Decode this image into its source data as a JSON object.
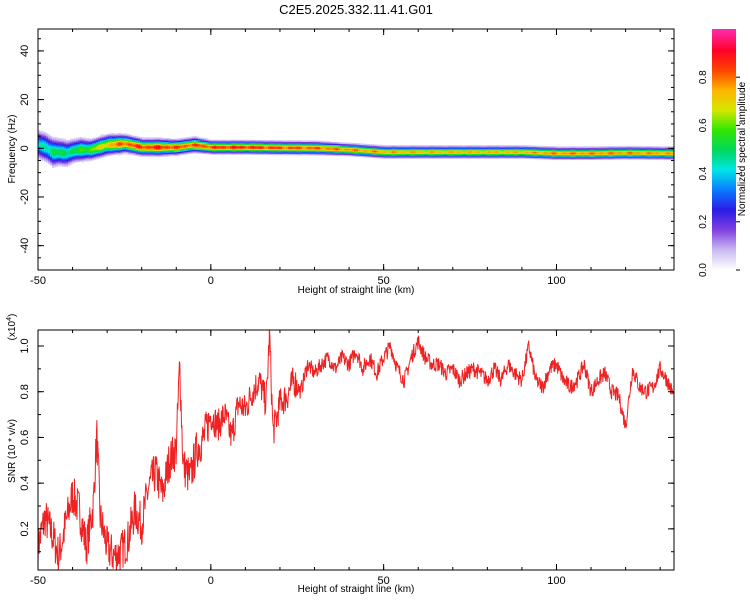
{
  "title": "C2E5.2025.332.11.41.G01",
  "chart_data": [
    {
      "type": "heatmap",
      "title": "C2E5.2025.332.11.41.G01",
      "xlabel": "Height of straight line (km)",
      "ylabel": "Frequency (Hz)",
      "xlim": [
        -50,
        134
      ],
      "ylim": [
        -50,
        49
      ],
      "x_ticks": [
        "-50",
        "0",
        "50",
        "100"
      ],
      "y_ticks": [
        "40",
        "20",
        "0",
        "-20",
        "-40"
      ],
      "colorbar": {
        "label": "Normalized spectral amplitude",
        "range": [
          0,
          1
        ],
        "ticks": [
          "0.0",
          "0.2",
          "0.4",
          "0.6",
          "0.8"
        ],
        "colors": [
          "#ffffff",
          "#c9b8f2",
          "#7f3fe0",
          "#2a1ce6",
          "#0a7cff",
          "#00e6e6",
          "#00d85a",
          "#33e600",
          "#d6e600",
          "#ffb400",
          "#ff4400",
          "#ff0028",
          "#ff2aa8"
        ]
      },
      "ridge": {
        "x": [
          -50,
          -48,
          -46,
          -44,
          -42,
          -40,
          -38,
          -35,
          -30,
          -25,
          -20,
          -15,
          -10,
          -5,
          0,
          5,
          10,
          20,
          30,
          40,
          50,
          60,
          70,
          80,
          90,
          100,
          110,
          120,
          134
        ],
        "center_hz": [
          1.5,
          0.5,
          -1.5,
          -1.5,
          -2,
          -1,
          -0.5,
          -0.5,
          1.5,
          2,
          0.5,
          0.5,
          0.5,
          1.5,
          0.5,
          0.5,
          0.5,
          0.3,
          0.2,
          -0.5,
          -1.5,
          -1.5,
          -1.5,
          -1.5,
          -1.5,
          -2,
          -2,
          -1.8,
          -2
        ],
        "half_width_hz": [
          5,
          5,
          5,
          4.5,
          4.5,
          4,
          4,
          3.5,
          3.5,
          3,
          2.8,
          2.8,
          2.5,
          2.5,
          2.2,
          2.2,
          2.2,
          2.2,
          2.2,
          2,
          2,
          2,
          2,
          2,
          2,
          2,
          2,
          2,
          2
        ],
        "peak": [
          0.45,
          0.5,
          0.55,
          0.55,
          0.55,
          0.55,
          0.6,
          0.65,
          0.8,
          0.9,
          0.92,
          0.95,
          0.9,
          0.9,
          0.92,
          0.95,
          0.95,
          0.9,
          0.88,
          0.85,
          0.82,
          0.8,
          0.8,
          0.8,
          0.8,
          0.85,
          0.85,
          0.85,
          0.82
        ]
      }
    },
    {
      "type": "line",
      "xlabel": "Height of straight line (km)",
      "ylabel": "SNR (10 * v/v)",
      "y_multiplier": "(x10",
      "y_multiplier_exp": "4",
      "y_multiplier_close": ")",
      "xlim": [
        -50,
        134
      ],
      "ylim": [
        0.02,
        1.07
      ],
      "x_ticks": [
        "-50",
        "0",
        "50",
        "100"
      ],
      "y_ticks": [
        "1.0",
        "0.8",
        "0.6",
        "0.4",
        "0.2"
      ],
      "series": [
        {
          "color": "#ee2222",
          "x": [
            -50,
            -48,
            -46,
            -44,
            -42,
            -40,
            -38,
            -36,
            -34,
            -33,
            -32,
            -30,
            -28,
            -26,
            -24,
            -22,
            -20,
            -18,
            -16,
            -14,
            -12,
            -10,
            -9,
            -8,
            -6,
            -4,
            -2,
            0,
            2,
            4,
            6,
            8,
            10,
            12,
            14,
            16,
            17,
            18,
            20,
            22,
            24,
            26,
            28,
            30,
            32,
            34,
            36,
            38,
            40,
            42,
            44,
            46,
            48,
            50,
            52,
            54,
            56,
            58,
            60,
            62,
            64,
            66,
            68,
            70,
            72,
            74,
            76,
            78,
            80,
            82,
            84,
            86,
            88,
            90,
            92,
            94,
            96,
            98,
            100,
            102,
            104,
            106,
            108,
            110,
            112,
            114,
            116,
            118,
            120,
            122,
            124,
            126,
            128,
            130,
            132,
            134
          ],
          "values": [
            0.12,
            0.25,
            0.18,
            0.08,
            0.22,
            0.35,
            0.28,
            0.12,
            0.3,
            0.62,
            0.25,
            0.12,
            0.08,
            0.1,
            0.15,
            0.28,
            0.22,
            0.38,
            0.45,
            0.35,
            0.5,
            0.55,
            0.92,
            0.48,
            0.42,
            0.55,
            0.6,
            0.7,
            0.65,
            0.7,
            0.6,
            0.75,
            0.72,
            0.8,
            0.85,
            0.75,
            1.05,
            0.62,
            0.75,
            0.78,
            0.85,
            0.8,
            0.92,
            0.88,
            0.92,
            0.95,
            0.9,
            0.95,
            0.92,
            0.98,
            0.9,
            0.95,
            0.88,
            0.95,
            1.0,
            0.9,
            0.85,
            0.95,
            1.02,
            0.95,
            0.92,
            0.92,
            0.88,
            0.9,
            0.85,
            0.88,
            0.9,
            0.88,
            0.85,
            0.9,
            0.85,
            0.92,
            0.88,
            0.85,
            1.0,
            0.85,
            0.82,
            0.9,
            0.92,
            0.85,
            0.82,
            0.85,
            0.92,
            0.8,
            0.85,
            0.88,
            0.8,
            0.78,
            0.65,
            0.9,
            0.82,
            0.8,
            0.82,
            0.9,
            0.85,
            0.78
          ]
        }
      ]
    }
  ]
}
